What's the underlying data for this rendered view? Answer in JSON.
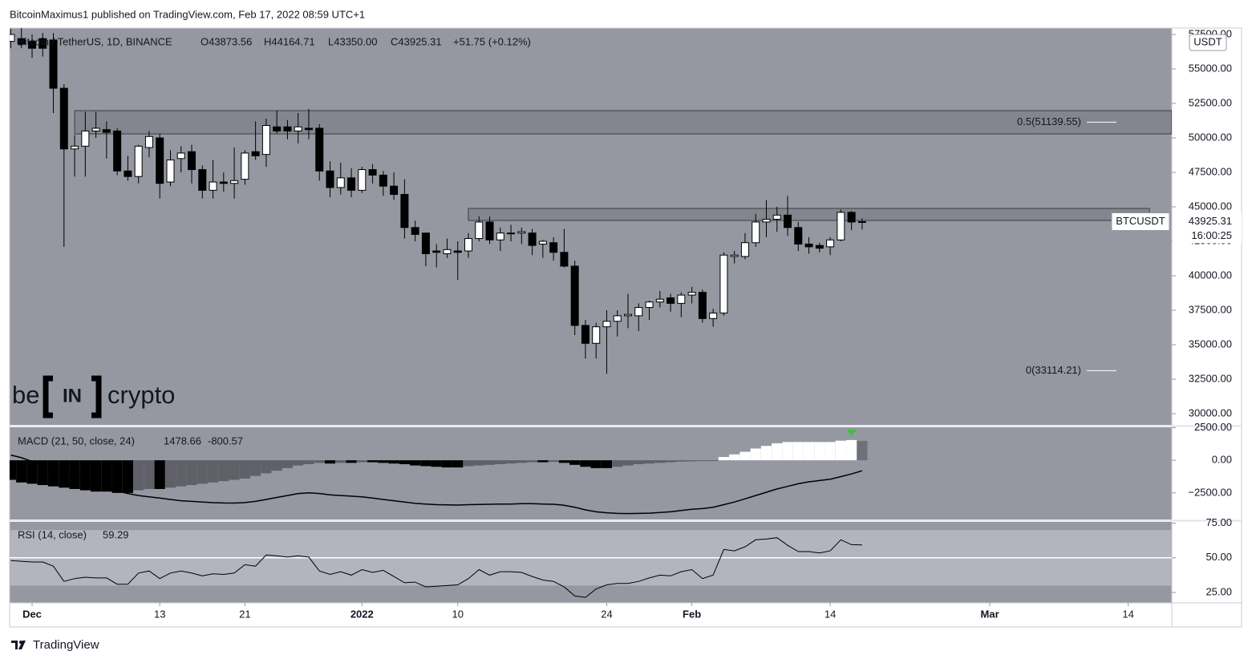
{
  "header": "BitcoinMaximus1 published on TradingView.com, Feb 17, 2022 08:59 UTC+1",
  "footer": "TradingView",
  "watermark": [
    "be",
    "IN",
    "crypto"
  ],
  "chart_data": [
    {
      "type": "candlestick",
      "title": "Bitcoin / TetherUS, 1D, BINANCE",
      "ohlc_labels": [
        "O43873.56",
        "H44164.71",
        "L43350.00",
        "C43925.31",
        "+51.75 (+0.12%)"
      ],
      "currency": "USDT",
      "up_color": "#ffffff",
      "down_color": "#000000",
      "x": [
        -2,
        -1,
        0,
        1,
        2,
        3,
        4,
        5,
        6,
        7,
        8,
        9,
        10,
        11,
        12,
        13,
        14,
        15,
        16,
        17,
        18,
        19,
        20,
        21,
        22,
        23,
        24,
        25,
        26,
        27,
        28,
        29,
        30,
        31,
        32,
        33,
        34,
        35,
        36,
        37,
        38,
        39,
        40,
        41,
        42,
        43,
        44,
        45,
        46,
        47,
        48,
        49,
        50,
        51,
        52,
        53,
        54,
        55,
        56,
        57,
        58,
        59,
        60,
        61,
        62,
        63,
        64,
        65,
        66,
        67,
        68,
        69,
        70,
        71,
        72,
        73,
        74,
        75,
        76,
        77,
        78
      ],
      "open": [
        57000,
        57200,
        57000,
        57200,
        57100,
        53600,
        49200,
        49400,
        50500,
        50600,
        50500,
        47600,
        47200,
        49300,
        50000,
        46800,
        48500,
        49000,
        47700,
        46200,
        46800,
        46700,
        47000,
        49000,
        48800,
        50800,
        50800,
        50500,
        50700,
        50700,
        47600,
        46400,
        47100,
        46200,
        47700,
        47300,
        46500,
        45900,
        43500,
        43100,
        41800,
        41600,
        41800,
        41800,
        42700,
        43900,
        42600,
        43100,
        43100,
        43100,
        42300,
        42400,
        41700,
        40700,
        36400,
        35100,
        36300,
        36700,
        37100,
        37100,
        37700,
        38100,
        38400,
        38000,
        38600,
        38800,
        36900,
        37300,
        41400,
        41400,
        42400,
        43900,
        44100,
        44400,
        43500,
        42300,
        42200,
        42100,
        42600,
        44600,
        43873.56
      ],
      "high": [
        57900,
        59000,
        57500,
        57600,
        57600,
        53900,
        50200,
        51900,
        51900,
        51200,
        50700,
        48700,
        49500,
        50500,
        50300,
        49100,
        49400,
        49500,
        48000,
        48400,
        47500,
        49300,
        49100,
        51200,
        51400,
        52000,
        51300,
        51800,
        52100,
        51000,
        48300,
        48200,
        47800,
        47900,
        48100,
        47600,
        47500,
        47000,
        44000,
        43100,
        42300,
        42700,
        42500,
        43100,
        44300,
        44300,
        43500,
        43700,
        43500,
        43400,
        42600,
        42800,
        43400,
        41100,
        36800,
        36600,
        37500,
        37500,
        38700,
        38000,
        38200,
        38900,
        38700,
        38800,
        39200,
        39000,
        37600,
        41700,
        41800,
        43100,
        44500,
        45500,
        45000,
        45800,
        43900,
        42800,
        42400,
        42800,
        44800,
        44700,
        44164.71
      ],
      "low": [
        56500,
        56500,
        55800,
        55900,
        51800,
        42100,
        47200,
        47200,
        50000,
        48500,
        47300,
        46900,
        46700,
        48600,
        45600,
        46500,
        47500,
        46700,
        45600,
        45600,
        46100,
        45600,
        46600,
        48400,
        47900,
        50300,
        49900,
        49600,
        49900,
        46900,
        45700,
        45900,
        45700,
        46000,
        46700,
        45800,
        45500,
        42700,
        42500,
        40700,
        40600,
        41300,
        39700,
        41300,
        42500,
        42300,
        41800,
        42500,
        42300,
        41500,
        41300,
        41100,
        40600,
        35700,
        34000,
        34000,
        32900,
        35600,
        36200,
        36000,
        36800,
        37700,
        37400,
        37000,
        38000,
        36600,
        36300,
        37100,
        40900,
        41200,
        42100,
        42800,
        43200,
        42900,
        41800,
        41600,
        41700,
        41500,
        42500,
        43300,
        43350
      ],
      "close": [
        57500,
        56800,
        56500,
        56500,
        53600,
        49200,
        49400,
        50500,
        50700,
        50400,
        47600,
        47200,
        49400,
        50100,
        46700,
        48400,
        48900,
        47700,
        46200,
        46800,
        46700,
        46900,
        48900,
        48700,
        50900,
        50500,
        50500,
        50800,
        50600,
        47600,
        46400,
        47100,
        46200,
        47700,
        47300,
        46500,
        45900,
        43500,
        43000,
        41600,
        41700,
        41900,
        41700,
        42700,
        43900,
        42600,
        43100,
        43100,
        43200,
        42200,
        42500,
        41700,
        40700,
        36400,
        35100,
        36300,
        36700,
        37100,
        37200,
        37700,
        38100,
        38300,
        38000,
        38600,
        38800,
        36900,
        37300,
        41500,
        41500,
        42400,
        43900,
        44100,
        44400,
        43500,
        42300,
        42100,
        42000,
        42600,
        44600,
        43900,
        43925.31
      ],
      "xlim": [
        -2.11,
        107.1
      ],
      "xticks": [
        {
          "value": 0,
          "label": "Dec"
        },
        {
          "value": 12,
          "label": "13"
        },
        {
          "value": 20,
          "label": "21"
        },
        {
          "value": 31,
          "label": "2022"
        },
        {
          "value": 40,
          "label": "10"
        },
        {
          "value": 54,
          "label": "24"
        },
        {
          "value": 62,
          "label": "Feb"
        },
        {
          "value": 75,
          "label": "14"
        },
        {
          "value": 90,
          "label": "Mar"
        },
        {
          "value": 103,
          "label": "14"
        }
      ],
      "ylim": [
        29186,
        57965
      ],
      "yticks": [
        {
          "value": 30000,
          "label": "30000.00"
        },
        {
          "value": 32500,
          "label": "32500.00"
        },
        {
          "value": 35000,
          "label": "35000.00"
        },
        {
          "value": 37500,
          "label": "37500.00"
        },
        {
          "value": 40000,
          "label": "40000.00"
        },
        {
          "value": 42500,
          "label": "42500.00"
        },
        {
          "value": 45000,
          "label": "45000.00"
        },
        {
          "value": 47500,
          "label": "47500.00"
        },
        {
          "value": 50000,
          "label": "50000.00"
        },
        {
          "value": 52500,
          "label": "52500.00"
        },
        {
          "value": 55000,
          "label": "55000.00"
        },
        {
          "value": 57500,
          "label": "57500.00"
        }
      ],
      "zones": [
        {
          "x": [
            4,
            107.1
          ],
          "y": [
            50290,
            51977
          ]
        },
        {
          "x": [
            41,
            105
          ],
          "y": [
            44012,
            44884
          ]
        }
      ],
      "fib": [
        {
          "label": "0.5(51139.55)",
          "value": 51139.55
        },
        {
          "label": "0(33114.21)",
          "value": 33114.21
        }
      ],
      "price_tag": {
        "symbol": "BTCUSDT",
        "price": 43925.31,
        "countdown": "16:00:25"
      }
    },
    {
      "type": "macd",
      "title": "MACD (21, 50, close, 24)",
      "histogram": [
        -1500,
        -1700,
        -1800,
        -1900,
        -2000,
        -2100,
        -2200,
        -2300,
        -2400,
        -2400,
        -2500,
        -2500,
        -2300,
        -2200,
        -2200,
        -2100,
        -2000,
        -1900,
        -1800,
        -1700,
        -1600,
        -1500,
        -1400,
        -1200,
        -1000,
        -800,
        -600,
        -400,
        -300,
        -200,
        -250,
        -200,
        -200,
        -150,
        -150,
        -200,
        -250,
        -300,
        -400,
        -450,
        -500,
        -550,
        -550,
        -450,
        -400,
        -350,
        -300,
        -250,
        -200,
        -150,
        -150,
        -120,
        -200,
        -350,
        -500,
        -600,
        -600,
        -500,
        -400,
        -300,
        -250,
        -200,
        -150,
        -100,
        -80,
        -50,
        -40,
        250,
        450,
        650,
        900,
        1100,
        1300,
        1400,
        1400,
        1400,
        1400,
        1400,
        1500,
        1550,
        1478.66
      ],
      "macd": [
        400,
        200,
        -100,
        -350,
        -600,
        -900,
        -1250,
        -1550,
        -1850,
        -2100,
        -2350,
        -2550,
        -2700,
        -2800,
        -2900,
        -3000,
        -3100,
        -3150,
        -3200,
        -3250,
        -3270,
        -3280,
        -3240,
        -3150,
        -3000,
        -2850,
        -2700,
        -2550,
        -2500,
        -2550,
        -2650,
        -2700,
        -2750,
        -2800,
        -2900,
        -3000,
        -3100,
        -3200,
        -3300,
        -3350,
        -3400,
        -3420,
        -3430,
        -3400,
        -3380,
        -3370,
        -3360,
        -3350,
        -3330,
        -3330,
        -3350,
        -3370,
        -3450,
        -3600,
        -3800,
        -3950,
        -4020,
        -4070,
        -4080,
        -4070,
        -4050,
        -4000,
        -3950,
        -3850,
        -3750,
        -3700,
        -3600,
        -3400,
        -3200,
        -2950,
        -2700,
        -2450,
        -2200,
        -2000,
        -1800,
        -1650,
        -1550,
        -1450,
        -1250,
        -1050,
        -800.57
      ],
      "line_color": "#000000",
      "signal": {
        "x": 77,
        "color": "#3fbf3f"
      },
      "ylim": [
        -4537,
        2525
      ],
      "yticks": [
        {
          "value": -2500,
          "label": "−2500.00"
        },
        {
          "value": 0,
          "label": "0.00"
        },
        {
          "value": 2500,
          "label": "2500.00"
        }
      ]
    },
    {
      "type": "line",
      "title": "RSI (14, close)",
      "values": [
        48,
        47.5,
        47,
        47,
        44,
        33,
        35,
        36,
        35.5,
        35.5,
        31,
        31,
        39,
        40.5,
        35,
        39,
        40.5,
        39,
        37,
        38.5,
        38,
        39,
        45,
        44,
        52,
        51.5,
        50.5,
        51.5,
        50.5,
        40.5,
        38,
        40,
        37.5,
        41.5,
        39.5,
        41,
        36.5,
        32,
        32.5,
        29,
        29.5,
        30,
        30.5,
        35,
        41.5,
        37.5,
        40,
        40,
        39.5,
        36.5,
        34,
        33,
        29,
        22.5,
        21.5,
        27.5,
        30.5,
        31.5,
        31.5,
        33,
        35.5,
        37.5,
        37,
        40,
        41.5,
        35,
        37.5,
        56,
        55,
        58,
        63,
        63.5,
        64.5,
        59,
        54.5,
        54.5,
        53.5,
        55,
        63,
        59.5,
        59.29
      ],
      "color": "#000000",
      "band": [
        30,
        70
      ],
      "levels": [
        50
      ],
      "ylim": [
        17.5,
        75.9
      ],
      "yticks": [
        {
          "value": 25,
          "label": "25.00"
        },
        {
          "value": 50,
          "label": "50.00"
        },
        {
          "value": 75,
          "label": "75.00"
        }
      ]
    }
  ]
}
